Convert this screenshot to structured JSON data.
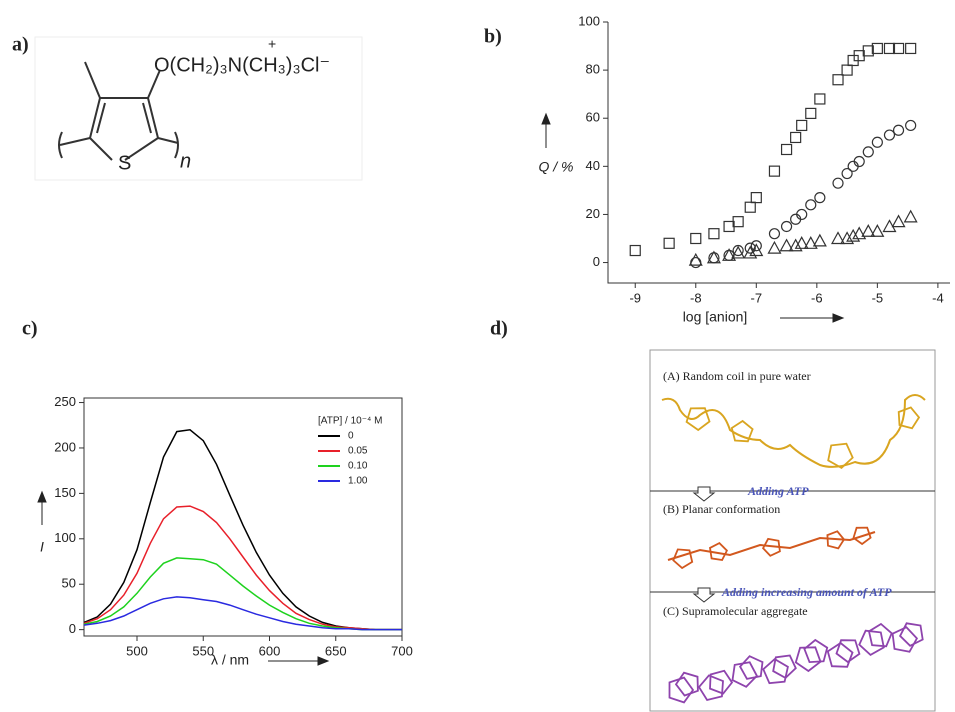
{
  "panel_labels": [
    "a)",
    "b)",
    "c)",
    "d)"
  ],
  "structure": {
    "side_chain": "O(CH₂)₃N(CH₃)₃Cl⁻",
    "charge": "+",
    "ring_atom": "S",
    "repeat": "n"
  },
  "chart_data": [
    {
      "type": "scatter",
      "xlabel": "log [anion]",
      "ylabel": "Q / %",
      "xlim": [
        -9.45,
        -3.8
      ],
      "ylim": [
        -8.5,
        100
      ],
      "xticks": [
        -9,
        -8,
        -7,
        -6,
        -5,
        -4
      ],
      "yticks": [
        0,
        20,
        40,
        60,
        80,
        100
      ],
      "series": [
        {
          "marker": "square",
          "color": "#333333",
          "x": [
            -9,
            -8.44,
            -8,
            -7.7,
            -7.45,
            -7.3,
            -7.1,
            -7,
            -6.7,
            -6.5,
            -6.35,
            -6.25,
            -6.1,
            -5.95,
            -5.65,
            -5.5,
            -5.4,
            -5.3,
            -5.15,
            -5,
            -4.8,
            -4.65,
            -4.45
          ],
          "values": [
            5,
            8,
            10,
            12,
            15,
            17,
            23,
            27,
            38,
            47,
            52,
            57,
            62,
            68,
            76,
            80,
            84,
            86,
            88,
            89,
            89,
            89,
            89
          ]
        },
        {
          "marker": "circle",
          "color": "#333333",
          "x": [
            -8,
            -7.7,
            -7.45,
            -7.3,
            -7.1,
            -7,
            -6.7,
            -6.5,
            -6.35,
            -6.25,
            -6.1,
            -5.95,
            -5.65,
            -5.5,
            -5.4,
            -5.3,
            -5.15,
            -5,
            -4.8,
            -4.65,
            -4.45
          ],
          "values": [
            0,
            2,
            3,
            5,
            6,
            7,
            12,
            15,
            18,
            20,
            24,
            27,
            33,
            37,
            40,
            42,
            46,
            50,
            53,
            55,
            57
          ]
        },
        {
          "marker": "triangle",
          "color": "#333333",
          "x": [
            -8,
            -7.7,
            -7.45,
            -7.3,
            -7.1,
            -7,
            -6.7,
            -6.5,
            -6.35,
            -6.25,
            -6.1,
            -5.95,
            -5.65,
            -5.5,
            -5.4,
            -5.3,
            -5.15,
            -5,
            -4.8,
            -4.65,
            -4.45
          ],
          "values": [
            1,
            2,
            3,
            4,
            4,
            5,
            6,
            7,
            7,
            8,
            8,
            9,
            10,
            10,
            11,
            12,
            13,
            13,
            15,
            17,
            19
          ]
        }
      ]
    },
    {
      "type": "line",
      "xlabel": "λ / nm",
      "ylabel": "I",
      "legend_title": "[ATP] / 10⁻⁴ M",
      "xlim": [
        460,
        700
      ],
      "ylim": [
        -7,
        255
      ],
      "xticks": [
        500,
        550,
        600,
        650,
        700
      ],
      "yticks": [
        0,
        50,
        100,
        150,
        200,
        250
      ],
      "x": [
        460,
        470,
        480,
        490,
        500,
        510,
        520,
        530,
        540,
        550,
        560,
        570,
        580,
        590,
        600,
        610,
        620,
        630,
        640,
        650,
        660,
        670,
        680,
        690,
        700
      ],
      "series": [
        {
          "name": "0",
          "color": "#000000",
          "values": [
            8,
            14,
            28,
            52,
            88,
            140,
            190,
            218,
            220,
            208,
            182,
            148,
            115,
            85,
            60,
            40,
            25,
            15,
            8,
            4,
            2,
            1,
            0,
            0,
            0
          ]
        },
        {
          "name": "0.05",
          "color": "#e8202a",
          "values": [
            7,
            12,
            22,
            38,
            62,
            95,
            122,
            135,
            136,
            130,
            118,
            100,
            80,
            60,
            43,
            29,
            18,
            11,
            6,
            3,
            2,
            1,
            0,
            0,
            0
          ]
        },
        {
          "name": "0.10",
          "color": "#1ed21e",
          "values": [
            6,
            9,
            15,
            25,
            40,
            58,
            73,
            79,
            78,
            77,
            72,
            60,
            48,
            37,
            27,
            19,
            12,
            7,
            4,
            2,
            1,
            0,
            0,
            0,
            0
          ]
        },
        {
          "name": "1.00",
          "color": "#2a2ae0",
          "values": [
            5,
            7,
            10,
            15,
            22,
            29,
            34,
            36,
            35,
            33,
            31,
            27,
            22,
            17,
            13,
            9,
            6,
            4,
            2,
            1,
            1,
            0,
            0,
            0,
            0
          ]
        }
      ]
    }
  ],
  "diagram": {
    "steps": [
      "(A) Random coil in pure water",
      "(B) Planar conformation",
      "(C) Supramolecular aggregate"
    ],
    "arrows": [
      "Adding ATP",
      "Adding increasing amount of ATP"
    ]
  }
}
